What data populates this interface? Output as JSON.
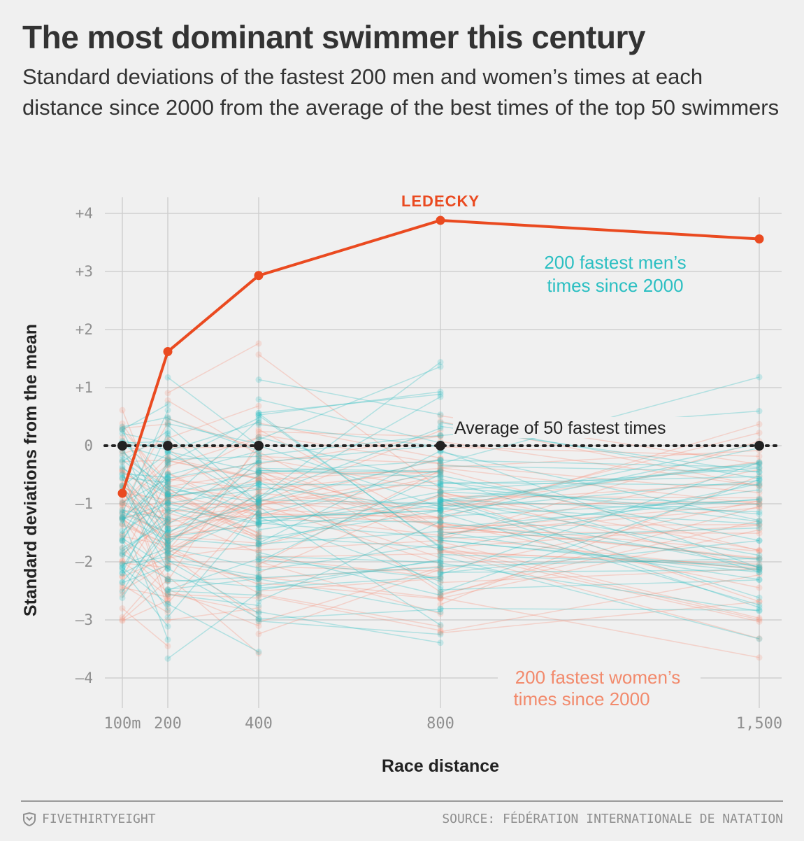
{
  "header": {
    "title": "The most dominant swimmer this century",
    "subtitle": "Standard deviations of the fastest 200 men and women’s times at each distance since 2000 from the average of the best times of the top 50 swimmers"
  },
  "footer": {
    "brand": "FIVETHIRTYEIGHT",
    "source": "SOURCE:  FÉDÉRATION INTERNATIONALE DE NATATION",
    "brand_icon": "fivethirtyeight-logo-icon"
  },
  "chart_data": {
    "type": "line",
    "xlabel": "Race distance",
    "ylabel": "Standard deviations from the mean",
    "x_ticks": [
      {
        "value": 100,
        "label": "100m"
      },
      {
        "value": 200,
        "label": "200"
      },
      {
        "value": 400,
        "label": "400"
      },
      {
        "value": 800,
        "label": "800"
      },
      {
        "value": 1500,
        "label": "1,500"
      }
    ],
    "y_ticks": [
      {
        "value": 4,
        "label": "+4"
      },
      {
        "value": 3,
        "label": "+3"
      },
      {
        "value": 2,
        "label": "+2"
      },
      {
        "value": 1,
        "label": "+1"
      },
      {
        "value": 0,
        "label": "0"
      },
      {
        "value": -1,
        "label": "–1"
      },
      {
        "value": -2,
        "label": "–2"
      },
      {
        "value": -3,
        "label": "–3"
      },
      {
        "value": -4,
        "label": "–4"
      }
    ],
    "ylim": [
      -4.4,
      4.4
    ],
    "grid": true,
    "colors": {
      "ledecky": "#ea4a20",
      "men": "#2bbfc2",
      "women": "#f7907a",
      "average": "#222222"
    },
    "series": [
      {
        "name": "LEDECKY",
        "x": [
          100,
          200,
          400,
          800,
          1500
        ],
        "y": [
          -0.82,
          1.62,
          2.93,
          3.88,
          3.56
        ]
      },
      {
        "name": "Average of 50 fastest times",
        "x": [
          100,
          200,
          400,
          800,
          1500
        ],
        "y": [
          0,
          0,
          0,
          0,
          0
        ]
      }
    ],
    "annotations": {
      "men": [
        "200 fastest men’s",
        "times since 2000"
      ],
      "women": [
        "200 fastest women’s",
        "times since 2000"
      ]
    },
    "background_swimmers": {
      "men_count": 200,
      "women_count": 200,
      "description_values_range": [
        -4.05,
        3.55
      ]
    }
  }
}
